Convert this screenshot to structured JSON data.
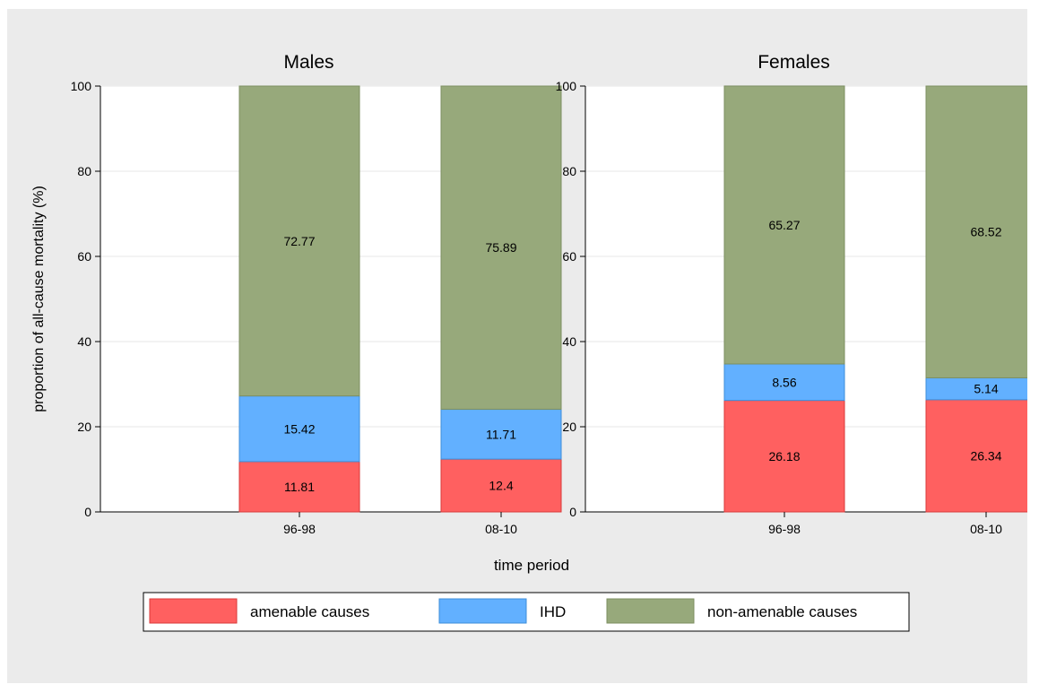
{
  "chart_data": {
    "type": "bar",
    "stacked": true,
    "xlabel": "time period",
    "ylabel": "proportion of all-cause mortality (%)",
    "ylim": [
      0,
      100
    ],
    "yticks": [
      0,
      20,
      40,
      60,
      80,
      100
    ],
    "grid": true,
    "legend_position": "bottom",
    "colors": {
      "amenable causes": "#ff6060",
      "IHD": "#62b0ff",
      "non-amenable causes": "#97a97b"
    },
    "legend": [
      "amenable causes",
      "IHD",
      "non-amenable causes"
    ],
    "panels": [
      {
        "title": "Males",
        "categories": [
          "96-98",
          "08-10"
        ],
        "series": [
          {
            "name": "amenable causes",
            "values": [
              11.81,
              12.4
            ]
          },
          {
            "name": "IHD",
            "values": [
              15.42,
              11.71
            ]
          },
          {
            "name": "non-amenable causes",
            "values": [
              72.77,
              75.89
            ]
          }
        ]
      },
      {
        "title": "Females",
        "categories": [
          "96-98",
          "08-10"
        ],
        "series": [
          {
            "name": "amenable causes",
            "values": [
              26.18,
              26.34
            ]
          },
          {
            "name": "IHD",
            "values": [
              8.56,
              5.14
            ]
          },
          {
            "name": "non-amenable causes",
            "values": [
              65.27,
              68.52
            ]
          }
        ]
      }
    ]
  }
}
